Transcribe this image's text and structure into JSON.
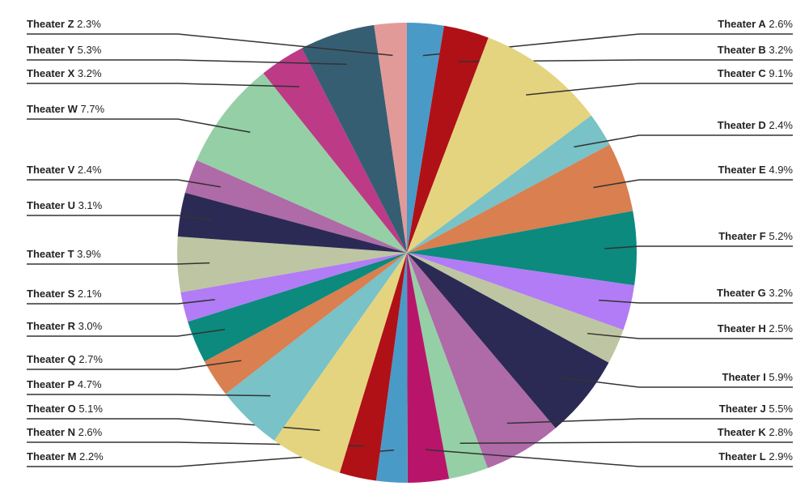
{
  "chart_data": {
    "type": "pie",
    "categories": [
      "Theater A",
      "Theater B",
      "Theater C",
      "Theater D",
      "Theater E",
      "Theater F",
      "Theater G",
      "Theater H",
      "Theater I",
      "Theater J",
      "Theater K",
      "Theater L",
      "Theater M",
      "Theater N",
      "Theater O",
      "Theater P",
      "Theater Q",
      "Theater R",
      "Theater S",
      "Theater T",
      "Theater U",
      "Theater V",
      "Theater W",
      "Theater X",
      "Theater Y",
      "Theater Z"
    ],
    "values": [
      2.6,
      3.2,
      9.1,
      2.4,
      4.9,
      5.2,
      3.2,
      2.5,
      5.9,
      5.5,
      2.8,
      2.9,
      2.2,
      2.6,
      5.1,
      4.7,
      2.7,
      3.0,
      2.1,
      3.9,
      3.1,
      2.4,
      7.7,
      3.2,
      5.3,
      2.3
    ],
    "value_labels": [
      "2.6%",
      "3.2%",
      "9.1%",
      "2.4%",
      "4.9%",
      "5.2%",
      "3.2%",
      "2.5%",
      "5.9%",
      "5.5%",
      "2.8%",
      "2.9%",
      "2.2%",
      "2.6%",
      "5.1%",
      "4.7%",
      "2.7%",
      "3.0%",
      "2.1%",
      "3.9%",
      "3.1%",
      "2.4%",
      "7.7%",
      "3.2%",
      "5.3%",
      "2.3%"
    ],
    "colors": [
      "#4a9ac8",
      "#b01117",
      "#e4d47f",
      "#78c2c8",
      "#d97f50",
      "#0c8a7e",
      "#b17cf5",
      "#bec5a2",
      "#2b2a55",
      "#af6aa8",
      "#95cfa6",
      "#b8156a",
      "#4a9ac8",
      "#b01117",
      "#e4d47f",
      "#78c2c8",
      "#d97f50",
      "#0c8a7e",
      "#b17cf5",
      "#bec5a2",
      "#2b2a55",
      "#af6aa8",
      "#95cfa6",
      "#bd3a86",
      "#365e72",
      "#e29a98"
    ]
  }
}
